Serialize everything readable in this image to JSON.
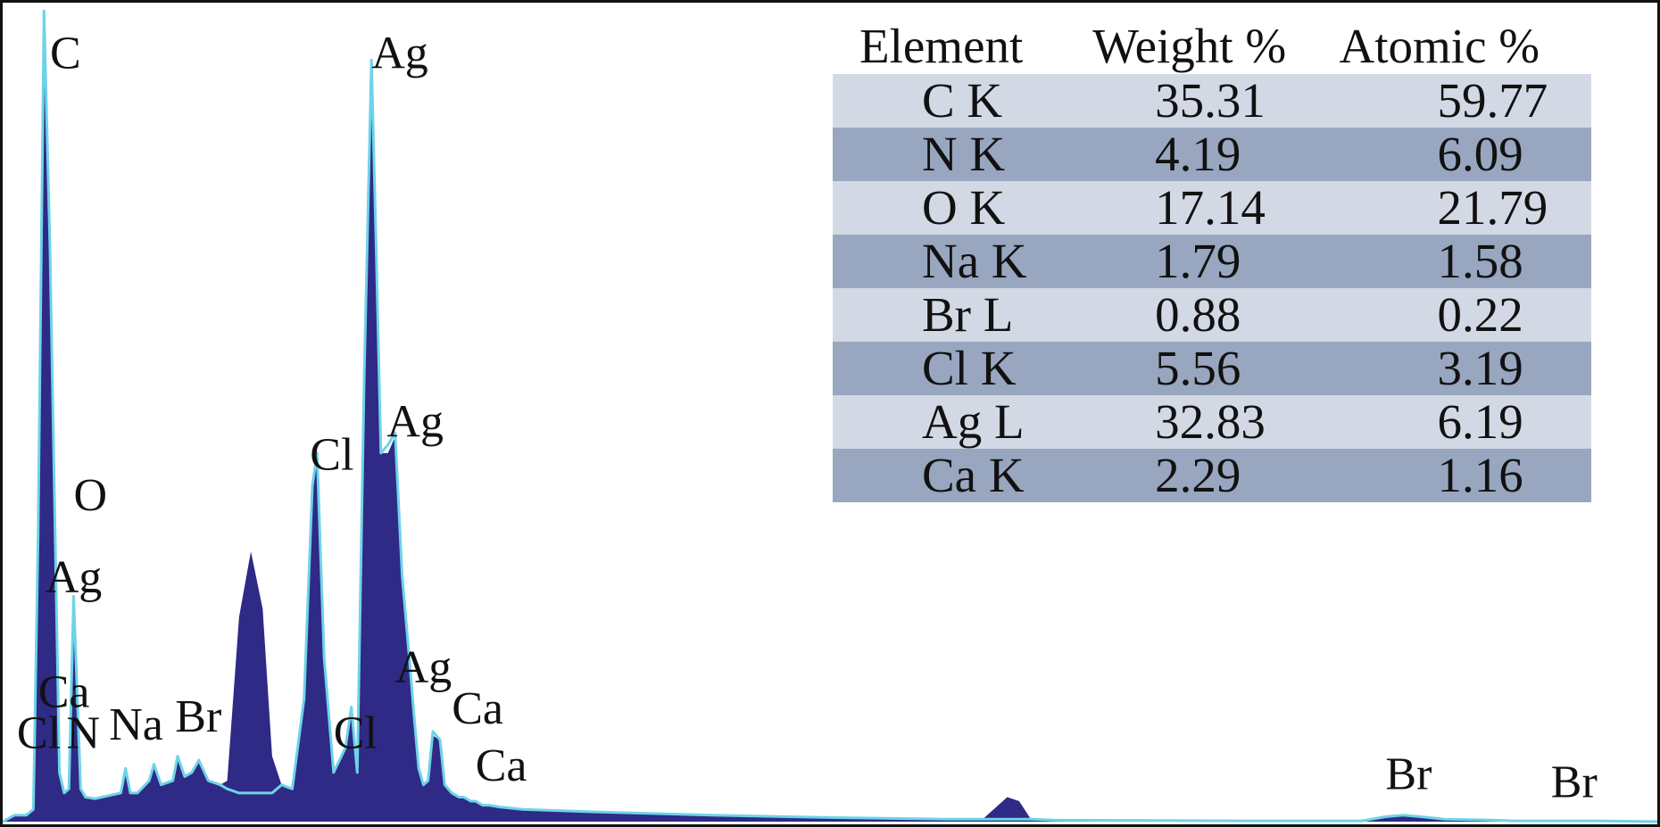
{
  "chart_data": {
    "type": "area",
    "title": "",
    "xlabel": "",
    "ylabel": "",
    "xlim": [
      0,
      14
    ],
    "ylim": [
      0,
      100
    ],
    "grid": false,
    "colors": {
      "fill": "#2e2a86",
      "outline": "#6fd3e8",
      "frame": "#111111",
      "table_header_bg": "#ffffff",
      "table_row_light": "#d3d9e4",
      "table_row_dark": "#98a6c0"
    },
    "series": [
      {
        "x": [
          0.0,
          0.1,
          0.2,
          0.26,
          0.3,
          0.35,
          0.4,
          0.48,
          0.52,
          0.56,
          0.6,
          0.66,
          0.7,
          0.78,
          0.84,
          1.0,
          1.04,
          1.08,
          1.14,
          1.24,
          1.28,
          1.34,
          1.44,
          1.48,
          1.54,
          1.6,
          1.66,
          1.74,
          1.84,
          1.9,
          2.0,
          2.1,
          2.2,
          2.28,
          2.36,
          2.45,
          2.55,
          2.62,
          2.66,
          2.72,
          2.8,
          2.9,
          2.95,
          3.0,
          3.06,
          3.12,
          3.16,
          3.2,
          3.26,
          3.32,
          3.38,
          3.44,
          3.48,
          3.52,
          3.56,
          3.6,
          3.64,
          3.7,
          3.74,
          3.8,
          3.86,
          3.9,
          3.96,
          4.0,
          4.06,
          4.12,
          4.2,
          4.4,
          5.0,
          6.0,
          7.0,
          8.0,
          8.3,
          8.5,
          8.6,
          8.7,
          8.9,
          9.5,
          10.5,
          11.5,
          11.7,
          11.85,
          12.0,
          12.2,
          12.6,
          12.8,
          13.0,
          13.5,
          14.0
        ],
        "y": [
          0.0,
          0.8,
          0.8,
          1.5,
          35.0,
          98.0,
          70.0,
          6.0,
          3.5,
          4.0,
          27.0,
          4.0,
          3.0,
          2.8,
          3.0,
          3.5,
          6.5,
          3.5,
          3.5,
          5.0,
          7.0,
          4.5,
          5.0,
          8.0,
          5.5,
          6.0,
          7.5,
          5.0,
          4.5,
          5.0,
          25.0,
          33.0,
          26.0,
          8.0,
          4.5,
          4.0,
          15.0,
          41.0,
          45.0,
          20.0,
          6.0,
          9.0,
          14.0,
          6.0,
          55.0,
          92.0,
          70.0,
          45.0,
          45.0,
          47.0,
          30.0,
          20.0,
          13.0,
          6.5,
          4.5,
          5.0,
          10.5,
          10.0,
          4.5,
          3.5,
          3.0,
          3.0,
          2.5,
          2.5,
          2.0,
          2.0,
          1.8,
          1.5,
          1.2,
          0.8,
          0.5,
          0.3,
          0.4,
          3.0,
          2.5,
          0.3,
          0.2,
          0.15,
          0.1,
          0.1,
          0.6,
          0.8,
          0.6,
          0.3,
          0.2,
          0.1,
          0.1,
          0.1,
          0.0
        ]
      },
      {
        "x": [
          0.0,
          0.1,
          0.2,
          0.26,
          0.3,
          0.35,
          0.4,
          0.48,
          0.52,
          0.56,
          0.6,
          0.66,
          0.7,
          0.78,
          0.84,
          1.0,
          1.04,
          1.08,
          1.14,
          1.24,
          1.28,
          1.34,
          1.44,
          1.48,
          1.54,
          1.6,
          1.66,
          1.74,
          1.84,
          1.9,
          2.0,
          2.1,
          2.2,
          2.28,
          2.36,
          2.45,
          2.55,
          2.62,
          2.66,
          2.72,
          2.8,
          2.9,
          2.95,
          3.0,
          3.06,
          3.12,
          3.16,
          3.2,
          3.26,
          3.32,
          3.38,
          3.44,
          3.48,
          3.52,
          3.56,
          3.6,
          3.64,
          3.7,
          3.74,
          3.8,
          3.86,
          3.9,
          3.96,
          4.0,
          4.06,
          4.12,
          4.2,
          4.4,
          5.0,
          6.0,
          7.0,
          8.0,
          8.3,
          8.5,
          8.6,
          8.7,
          8.9,
          9.5,
          10.5,
          11.5,
          11.7,
          11.85,
          12.0,
          12.2,
          12.6,
          12.8,
          13.0,
          13.5,
          14.0
        ],
        "y": [
          0.0,
          0.8,
          0.8,
          1.5,
          35.0,
          99.0,
          70.0,
          6.0,
          3.5,
          4.0,
          27.5,
          4.0,
          3.0,
          2.8,
          3.0,
          3.5,
          6.5,
          3.5,
          3.5,
          5.0,
          7.0,
          4.5,
          5.0,
          8.0,
          5.5,
          6.0,
          7.5,
          5.0,
          4.5,
          4.0,
          3.5,
          3.5,
          3.5,
          3.5,
          4.5,
          4.0,
          15.0,
          41.0,
          45.0,
          20.0,
          6.0,
          9.0,
          14.0,
          6.0,
          55.0,
          93.0,
          70.0,
          45.0,
          46.0,
          47.5,
          30.0,
          20.0,
          13.0,
          6.5,
          4.5,
          5.0,
          11.0,
          10.0,
          4.5,
          3.5,
          3.0,
          3.0,
          2.5,
          2.5,
          2.0,
          2.0,
          1.8,
          1.5,
          1.2,
          0.8,
          0.5,
          0.3,
          0.3,
          0.3,
          0.3,
          0.3,
          0.2,
          0.15,
          0.1,
          0.1,
          0.6,
          0.8,
          0.6,
          0.3,
          0.2,
          0.1,
          0.1,
          0.1,
          0.0
        ]
      }
    ],
    "peak_labels": [
      {
        "text": "C",
        "x": 0.4,
        "y": 92
      },
      {
        "text": "Ag",
        "x": 3.12,
        "y": 92
      },
      {
        "text": "O",
        "x": 0.6,
        "y": 38
      },
      {
        "text": "Ag",
        "x": 0.36,
        "y": 28
      },
      {
        "text": "Cl",
        "x": 2.6,
        "y": 43
      },
      {
        "text": "Ag",
        "x": 3.25,
        "y": 47
      },
      {
        "text": "Ca",
        "x": 0.3,
        "y": 14
      },
      {
        "text": "Cl",
        "x": 0.12,
        "y": 9
      },
      {
        "text": "N",
        "x": 0.54,
        "y": 9
      },
      {
        "text": "Na",
        "x": 0.9,
        "y": 10
      },
      {
        "text": "Br",
        "x": 1.46,
        "y": 11
      },
      {
        "text": "Cl",
        "x": 2.8,
        "y": 9
      },
      {
        "text": "Ag",
        "x": 3.32,
        "y": 17
      },
      {
        "text": "Ca",
        "x": 3.8,
        "y": 12
      },
      {
        "text": "Ca",
        "x": 4.0,
        "y": 5
      },
      {
        "text": "Br",
        "x": 11.7,
        "y": 4
      },
      {
        "text": "Br",
        "x": 13.1,
        "y": 3
      }
    ],
    "table": {
      "headers": [
        "Element",
        "Weight %",
        "Atomic %"
      ],
      "rows": [
        [
          "C K",
          "35.31",
          "59.77"
        ],
        [
          "N K",
          "4.19",
          "6.09"
        ],
        [
          "O K",
          "17.14",
          "21.79"
        ],
        [
          "Na K",
          "1.79",
          "1.58"
        ],
        [
          "Br L",
          "0.88",
          "0.22"
        ],
        [
          "Cl K",
          "5.56",
          "3.19"
        ],
        [
          "Ag L",
          "32.83",
          "6.19"
        ],
        [
          "Ca K",
          "2.29",
          "1.16"
        ]
      ]
    }
  }
}
